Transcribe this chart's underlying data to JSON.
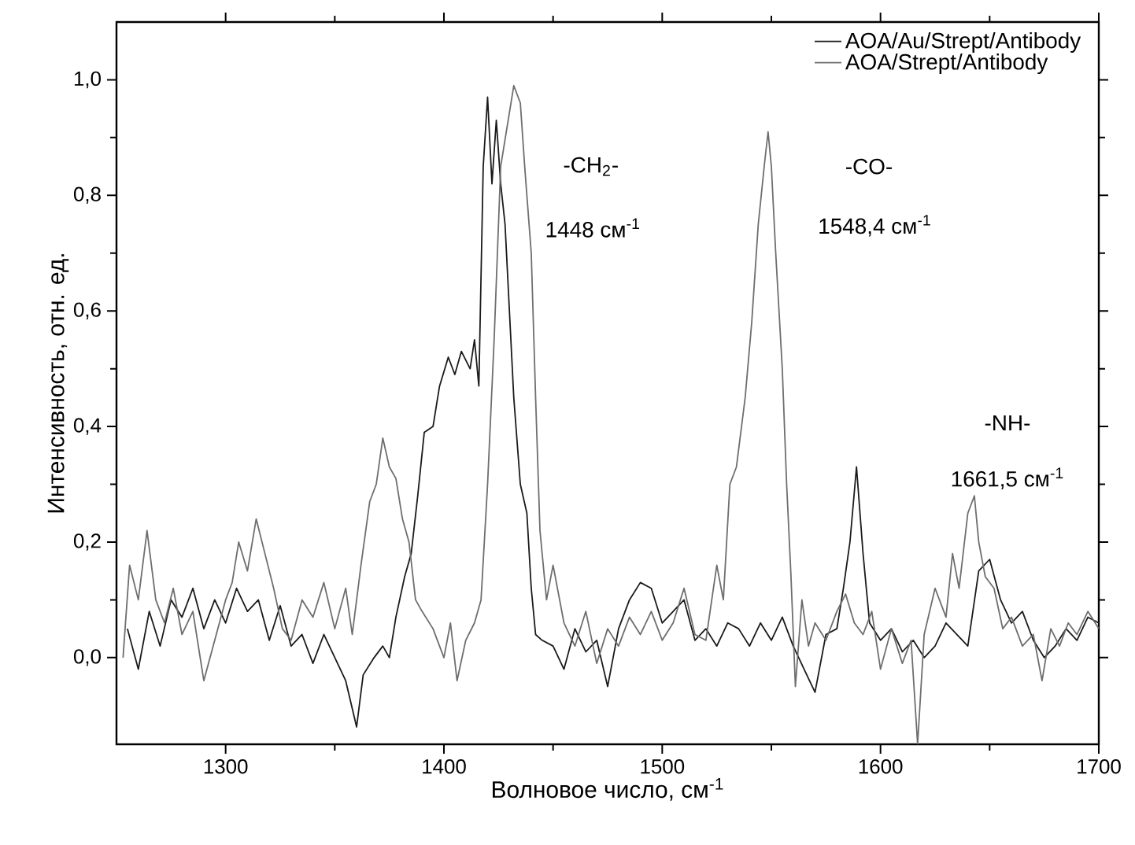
{
  "chart_data": {
    "type": "line",
    "xlabel": "Волновое число, см$^{-1}$",
    "ylabel": "Интенсивность, отн. ед.",
    "xlim": [
      1250,
      1700
    ],
    "ylim": [
      -0.15,
      1.1
    ],
    "xticks": [
      1300,
      1400,
      1500,
      1600,
      1700
    ],
    "yticks": [
      {
        "value": 0,
        "label": "0,0"
      },
      {
        "value": 0.2,
        "label": "0,2"
      },
      {
        "value": 0.4,
        "label": "0,4"
      },
      {
        "value": 0.6,
        "label": "0,6"
      },
      {
        "value": 0.8,
        "label": "0,8"
      },
      {
        "value": 1.0,
        "label": "1,0"
      }
    ],
    "legend": "top right",
    "grid": false,
    "marker": "none",
    "line_style": "solid",
    "annotations": [
      "-CH$_{2}$-",
      "1448 см$^{-1}$",
      "-CO-",
      "1548,4 см$^{-1}$",
      "-NH-",
      "1661,5 см$^{-1}$"
    ],
    "series": [
      {
        "name": "AOA/Au/Strept/Antibody",
        "color": "#1a1a1a",
        "x": [
          1255,
          1260,
          1265,
          1270,
          1275,
          1280,
          1285,
          1290,
          1295,
          1300,
          1305,
          1310,
          1315,
          1320,
          1325,
          1330,
          1335,
          1340,
          1345,
          1350,
          1355,
          1360,
          1363,
          1368,
          1372,
          1375,
          1378,
          1382,
          1385,
          1388,
          1391,
          1395,
          1398,
          1402,
          1405,
          1408,
          1412,
          1414,
          1416,
          1418,
          1420,
          1422,
          1424,
          1426,
          1428,
          1430,
          1432,
          1435,
          1438,
          1440,
          1442,
          1445,
          1450,
          1455,
          1460,
          1465,
          1470,
          1475,
          1480,
          1485,
          1490,
          1495,
          1500,
          1505,
          1510,
          1515,
          1520,
          1525,
          1530,
          1535,
          1540,
          1545,
          1550,
          1555,
          1560,
          1565,
          1570,
          1575,
          1580,
          1583,
          1586,
          1589,
          1592,
          1595,
          1600,
          1605,
          1610,
          1615,
          1620,
          1625,
          1630,
          1635,
          1640,
          1645,
          1650,
          1655,
          1660,
          1665,
          1670,
          1675,
          1680,
          1685,
          1690,
          1695,
          1700
        ],
        "values": [
          0.05,
          -0.02,
          0.08,
          0.02,
          0.1,
          0.07,
          0.12,
          0.05,
          0.1,
          0.06,
          0.12,
          0.08,
          0.1,
          0.03,
          0.09,
          0.02,
          0.04,
          -0.01,
          0.04,
          0.0,
          -0.04,
          -0.12,
          -0.03,
          0.0,
          0.02,
          0.0,
          0.07,
          0.14,
          0.18,
          0.28,
          0.39,
          0.4,
          0.47,
          0.52,
          0.49,
          0.53,
          0.5,
          0.55,
          0.47,
          0.85,
          0.97,
          0.82,
          0.93,
          0.82,
          0.75,
          0.6,
          0.45,
          0.3,
          0.25,
          0.12,
          0.04,
          0.03,
          0.02,
          -0.02,
          0.05,
          0.01,
          0.03,
          -0.05,
          0.05,
          0.1,
          0.13,
          0.12,
          0.06,
          0.08,
          0.1,
          0.03,
          0.05,
          0.02,
          0.06,
          0.05,
          0.02,
          0.06,
          0.03,
          0.07,
          0.02,
          -0.02,
          -0.06,
          0.04,
          0.05,
          0.12,
          0.2,
          0.33,
          0.18,
          0.06,
          0.03,
          0.05,
          0.01,
          0.03,
          0.0,
          0.02,
          0.06,
          0.04,
          0.02,
          0.15,
          0.17,
          0.1,
          0.06,
          0.08,
          0.03,
          0.0,
          0.02,
          0.05,
          0.03,
          0.07,
          0.06
        ]
      },
      {
        "name": "AOA/Strept/Antibody",
        "color": "#6e6e6e",
        "x": [
          1253,
          1256,
          1260,
          1264,
          1268,
          1272,
          1276,
          1280,
          1285,
          1290,
          1295,
          1300,
          1303,
          1306,
          1310,
          1314,
          1318,
          1322,
          1326,
          1330,
          1335,
          1340,
          1345,
          1350,
          1355,
          1358,
          1362,
          1366,
          1369,
          1372,
          1375,
          1378,
          1381,
          1384,
          1387,
          1390,
          1395,
          1400,
          1403,
          1406,
          1410,
          1414,
          1417,
          1420,
          1423,
          1426,
          1429,
          1432,
          1435,
          1437,
          1440,
          1442,
          1444,
          1447,
          1450,
          1455,
          1460,
          1465,
          1470,
          1475,
          1480,
          1485,
          1490,
          1495,
          1500,
          1505,
          1510,
          1515,
          1520,
          1525,
          1528,
          1531,
          1534,
          1538,
          1541,
          1544,
          1547,
          1548.5,
          1550,
          1552,
          1555,
          1557,
          1559,
          1561,
          1564,
          1567,
          1570,
          1575,
          1580,
          1584,
          1588,
          1592,
          1596,
          1600,
          1605,
          1610,
          1614,
          1617,
          1620,
          1625,
          1630,
          1633,
          1636,
          1640,
          1643,
          1645,
          1648,
          1652,
          1656,
          1660,
          1665,
          1670,
          1674,
          1678,
          1682,
          1686,
          1690,
          1695,
          1700
        ],
        "values": [
          0.0,
          0.16,
          0.1,
          0.22,
          0.1,
          0.06,
          0.12,
          0.04,
          0.08,
          -0.04,
          0.03,
          0.1,
          0.13,
          0.2,
          0.15,
          0.24,
          0.18,
          0.12,
          0.05,
          0.03,
          0.1,
          0.07,
          0.13,
          0.05,
          0.12,
          0.04,
          0.16,
          0.27,
          0.3,
          0.38,
          0.33,
          0.31,
          0.24,
          0.2,
          0.1,
          0.08,
          0.05,
          0.0,
          0.06,
          -0.04,
          0.03,
          0.06,
          0.1,
          0.3,
          0.55,
          0.85,
          0.92,
          0.99,
          0.96,
          0.85,
          0.7,
          0.45,
          0.22,
          0.1,
          0.16,
          0.06,
          0.02,
          0.08,
          -0.01,
          0.05,
          0.02,
          0.07,
          0.04,
          0.08,
          0.03,
          0.06,
          0.12,
          0.04,
          0.03,
          0.16,
          0.1,
          0.3,
          0.33,
          0.45,
          0.58,
          0.75,
          0.86,
          0.91,
          0.85,
          0.7,
          0.5,
          0.3,
          0.14,
          -0.05,
          0.1,
          0.02,
          0.06,
          0.03,
          0.08,
          0.11,
          0.06,
          0.04,
          0.08,
          -0.02,
          0.05,
          -0.01,
          0.03,
          -0.15,
          0.04,
          0.12,
          0.07,
          0.18,
          0.12,
          0.25,
          0.28,
          0.2,
          0.14,
          0.12,
          0.05,
          0.07,
          0.02,
          0.04,
          -0.04,
          0.05,
          0.02,
          0.06,
          0.04,
          0.08,
          0.05
        ]
      }
    ]
  }
}
